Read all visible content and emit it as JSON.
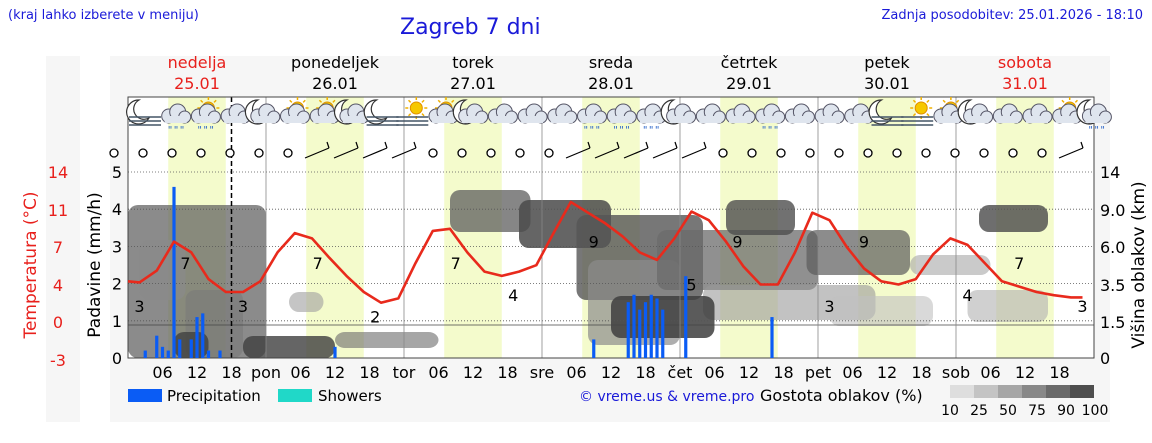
{
  "header": {
    "menu_hint": "(kraj lahko izberete v meniju)",
    "title": "Zagreb 7 dni",
    "updated": "Zadnja posodobitev: 25.01.2026 - 18:10"
  },
  "days": [
    {
      "name": "nedelja",
      "date": "25.01",
      "weekend": true
    },
    {
      "name": "ponedeljek",
      "date": "26.01",
      "weekend": false
    },
    {
      "name": "torek",
      "date": "27.01",
      "weekend": false
    },
    {
      "name": "sreda",
      "date": "28.01",
      "weekend": false
    },
    {
      "name": "četrtek",
      "date": "29.01",
      "weekend": false
    },
    {
      "name": "petek",
      "date": "30.01",
      "weekend": false
    },
    {
      "name": "sobota",
      "date": "31.01",
      "weekend": true
    }
  ],
  "colors": {
    "weekend": "#e8201c",
    "text": "#1a1ad8",
    "temperature_line": "#e82a1c",
    "precipitation": "#0a5cf5",
    "showers": "#20d8c8",
    "daylight": "#f4fbcc"
  },
  "icons": [
    "moon-fog-icon",
    "cloud-snow-icon",
    "sun-cloud-snow-icon",
    "cloud-icon",
    "moon-cloud-icon",
    "sun-cloud-icon",
    "sun-cloud-icon",
    "moon-cloud-icon",
    "moon-fog-icon",
    "sun-fog-icon",
    "sun-cloud-icon",
    "moon-cloud-icon",
    "cloud-icon",
    "cloud-icon",
    "cloud-icon",
    "cloud-snow-icon",
    "cloud-snow-icon",
    "cloud-snow-icon",
    "moon-cloud-icon",
    "cloud-icon",
    "cloud-icon",
    "cloud-snow-icon",
    "cloud-icon",
    "cloud-icon",
    "cloud-icon",
    "moon-fog-icon",
    "sun-fog-icon",
    "sun-cloud-icon",
    "moon-cloud-icon",
    "cloud-icon",
    "cloud-icon",
    "sun-cloud-icon",
    "moon-cloud-snow-icon"
  ],
  "chart_data": {
    "type": "line",
    "x_ticks": [
      "06",
      "12",
      "18",
      "pon",
      "06",
      "12",
      "18",
      "tor",
      "06",
      "12",
      "18",
      "sre",
      "06",
      "12",
      "18",
      "čet",
      "06",
      "12",
      "18",
      "pet",
      "06",
      "12",
      "18",
      "sob",
      "06",
      "12",
      "18"
    ],
    "precip_axis": {
      "label": "Padavine (mm/h)",
      "ticks": [
        "0",
        "1",
        "2",
        "3",
        "4",
        "5"
      ],
      "range": [
        0,
        5
      ]
    },
    "temp_axis": {
      "label": "Temperatura (°C)",
      "ticks": [
        "14",
        "11",
        "7",
        "4",
        "0",
        "-3"
      ]
    },
    "cloud_axis": {
      "label": "Višina oblakov (km)",
      "ticks": [
        "14",
        "9.0",
        "6.0",
        "3.5",
        "1.5",
        "0"
      ]
    },
    "temperature": {
      "unit": "°C",
      "hours": [
        0,
        2,
        5,
        8,
        11,
        14,
        17,
        20,
        23,
        26,
        29,
        32,
        35,
        38,
        41,
        44,
        47,
        50,
        53,
        56,
        59,
        62,
        65,
        68,
        71,
        74,
        77,
        80,
        83,
        86,
        89,
        92,
        95,
        98,
        101,
        104,
        107,
        110,
        113,
        116,
        119,
        122,
        125,
        128,
        131,
        134,
        137,
        140,
        143,
        146,
        149,
        152,
        155,
        158,
        161,
        164,
        166
      ],
      "values": [
        3.8,
        3.7,
        4.8,
        7.5,
        6.5,
        4,
        2.8,
        2.8,
        3.8,
        6.5,
        8.3,
        7.8,
        6,
        4.3,
        2.8,
        1.8,
        2.2,
        5.5,
        8.5,
        8.7,
        6.5,
        4.7,
        4.3,
        4.7,
        5.3,
        8.3,
        11.2,
        10.2,
        9.2,
        8,
        6.5,
        5.8,
        7.8,
        10.3,
        9.5,
        7.5,
        5.2,
        3.5,
        3.5,
        6.5,
        10.2,
        9.5,
        7,
        5,
        3.8,
        3.5,
        4,
        6.3,
        7.8,
        7.2,
        5.5,
        3.8,
        3.3,
        2.8,
        2.5,
        2.3,
        2.3
      ],
      "labels": [
        {
          "hour": 2,
          "value": "3"
        },
        {
          "hour": 10,
          "value": "7"
        },
        {
          "hour": 20,
          "value": "3"
        },
        {
          "hour": 33,
          "value": "7"
        },
        {
          "hour": 43,
          "value": "2"
        },
        {
          "hour": 57,
          "value": "7"
        },
        {
          "hour": 67,
          "value": "4"
        },
        {
          "hour": 81,
          "value": "9"
        },
        {
          "hour": 98,
          "value": "5"
        },
        {
          "hour": 106,
          "value": "9"
        },
        {
          "hour": 122,
          "value": "3"
        },
        {
          "hour": 128,
          "value": "9"
        },
        {
          "hour": 146,
          "value": "4"
        },
        {
          "hour": 155,
          "value": "7"
        },
        {
          "hour": 166,
          "value": "3"
        }
      ]
    },
    "series": [
      {
        "name": "Precipitation",
        "hours": [
          3,
          5,
          6,
          7,
          8,
          9,
          11,
          12,
          13,
          14,
          16,
          36,
          81,
          87,
          88,
          89,
          90,
          91,
          92,
          93,
          97,
          112
        ],
        "values": [
          0.2,
          0.6,
          0.3,
          0.2,
          4.6,
          0.5,
          0.5,
          1.1,
          1.2,
          0.2,
          0.2,
          0.3,
          0.5,
          1.5,
          1.7,
          1.3,
          1.5,
          1.7,
          1.6,
          1.3,
          2.2,
          1.1
        ]
      },
      {
        "name": "Showers",
        "hours": [],
        "values": []
      }
    ],
    "legend": {
      "precipitation": "Precipitation",
      "showers": "Showers",
      "credit": "© vreme.us & vreme.pro",
      "cloud_density": "Gostota oblakov (%)",
      "scale": [
        "10",
        "25",
        "50",
        "75",
        "90",
        "100"
      ]
    }
  }
}
